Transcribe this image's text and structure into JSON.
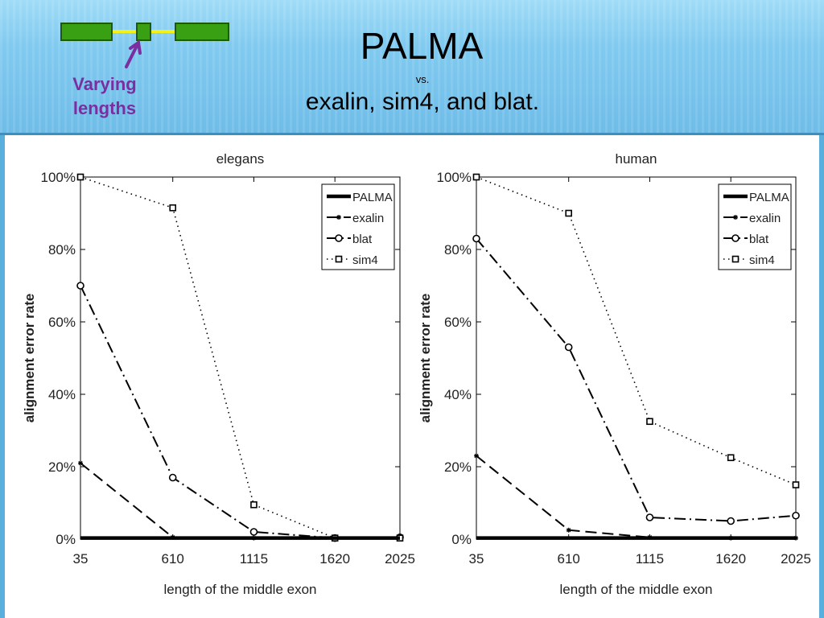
{
  "slide": {
    "title": "PALMA",
    "vs": "vs.",
    "subtitle": "exalin, sim4, and blat.",
    "diagram_label": "Varying lengths",
    "colors": {
      "exon_fill": "#3aa013",
      "exon_stroke": "#1f5a0a",
      "intron": "#f2f21a",
      "arrow": "#7a2ea0"
    }
  },
  "chart_data": [
    {
      "type": "line",
      "title": "elegans",
      "xlabel": "length of the middle exon",
      "ylabel": "alignment error rate",
      "categories": [
        "35",
        "610",
        "1115",
        "1620",
        "2025"
      ],
      "x": [
        35,
        610,
        1115,
        1620,
        2025
      ],
      "ylim": [
        0,
        100
      ],
      "yticks": [
        "0%",
        "20%",
        "40%",
        "60%",
        "80%",
        "100%"
      ],
      "legend_position": "top-right",
      "series": [
        {
          "name": "PALMA",
          "values": [
            0.3,
            0.3,
            0.3,
            0.3,
            0.3
          ]
        },
        {
          "name": "exalin",
          "values": [
            21,
            0.5,
            0.3,
            0.3,
            0.3
          ]
        },
        {
          "name": "blat",
          "values": [
            70,
            17,
            2,
            0.3,
            0.5
          ]
        },
        {
          "name": "sim4",
          "values": [
            100,
            91.5,
            9.5,
            0.3,
            0.3
          ]
        }
      ]
    },
    {
      "type": "line",
      "title": "human",
      "xlabel": "length of the middle exon",
      "ylabel": "alignment error rate",
      "categories": [
        "35",
        "610",
        "1115",
        "1620",
        "2025"
      ],
      "x": [
        35,
        610,
        1115,
        1620,
        2025
      ],
      "ylim": [
        0,
        100
      ],
      "yticks": [
        "0%",
        "20%",
        "40%",
        "60%",
        "80%",
        "100%"
      ],
      "legend_position": "top-right",
      "series": [
        {
          "name": "PALMA",
          "values": [
            0.3,
            0.3,
            0.3,
            0.3,
            0.3
          ]
        },
        {
          "name": "exalin",
          "values": [
            23,
            2.5,
            0.5,
            0.3,
            0.3
          ]
        },
        {
          "name": "blat",
          "values": [
            83,
            53,
            6,
            5,
            6.5
          ]
        },
        {
          "name": "sim4",
          "values": [
            100,
            90,
            32.5,
            22.5,
            15
          ]
        }
      ]
    }
  ]
}
